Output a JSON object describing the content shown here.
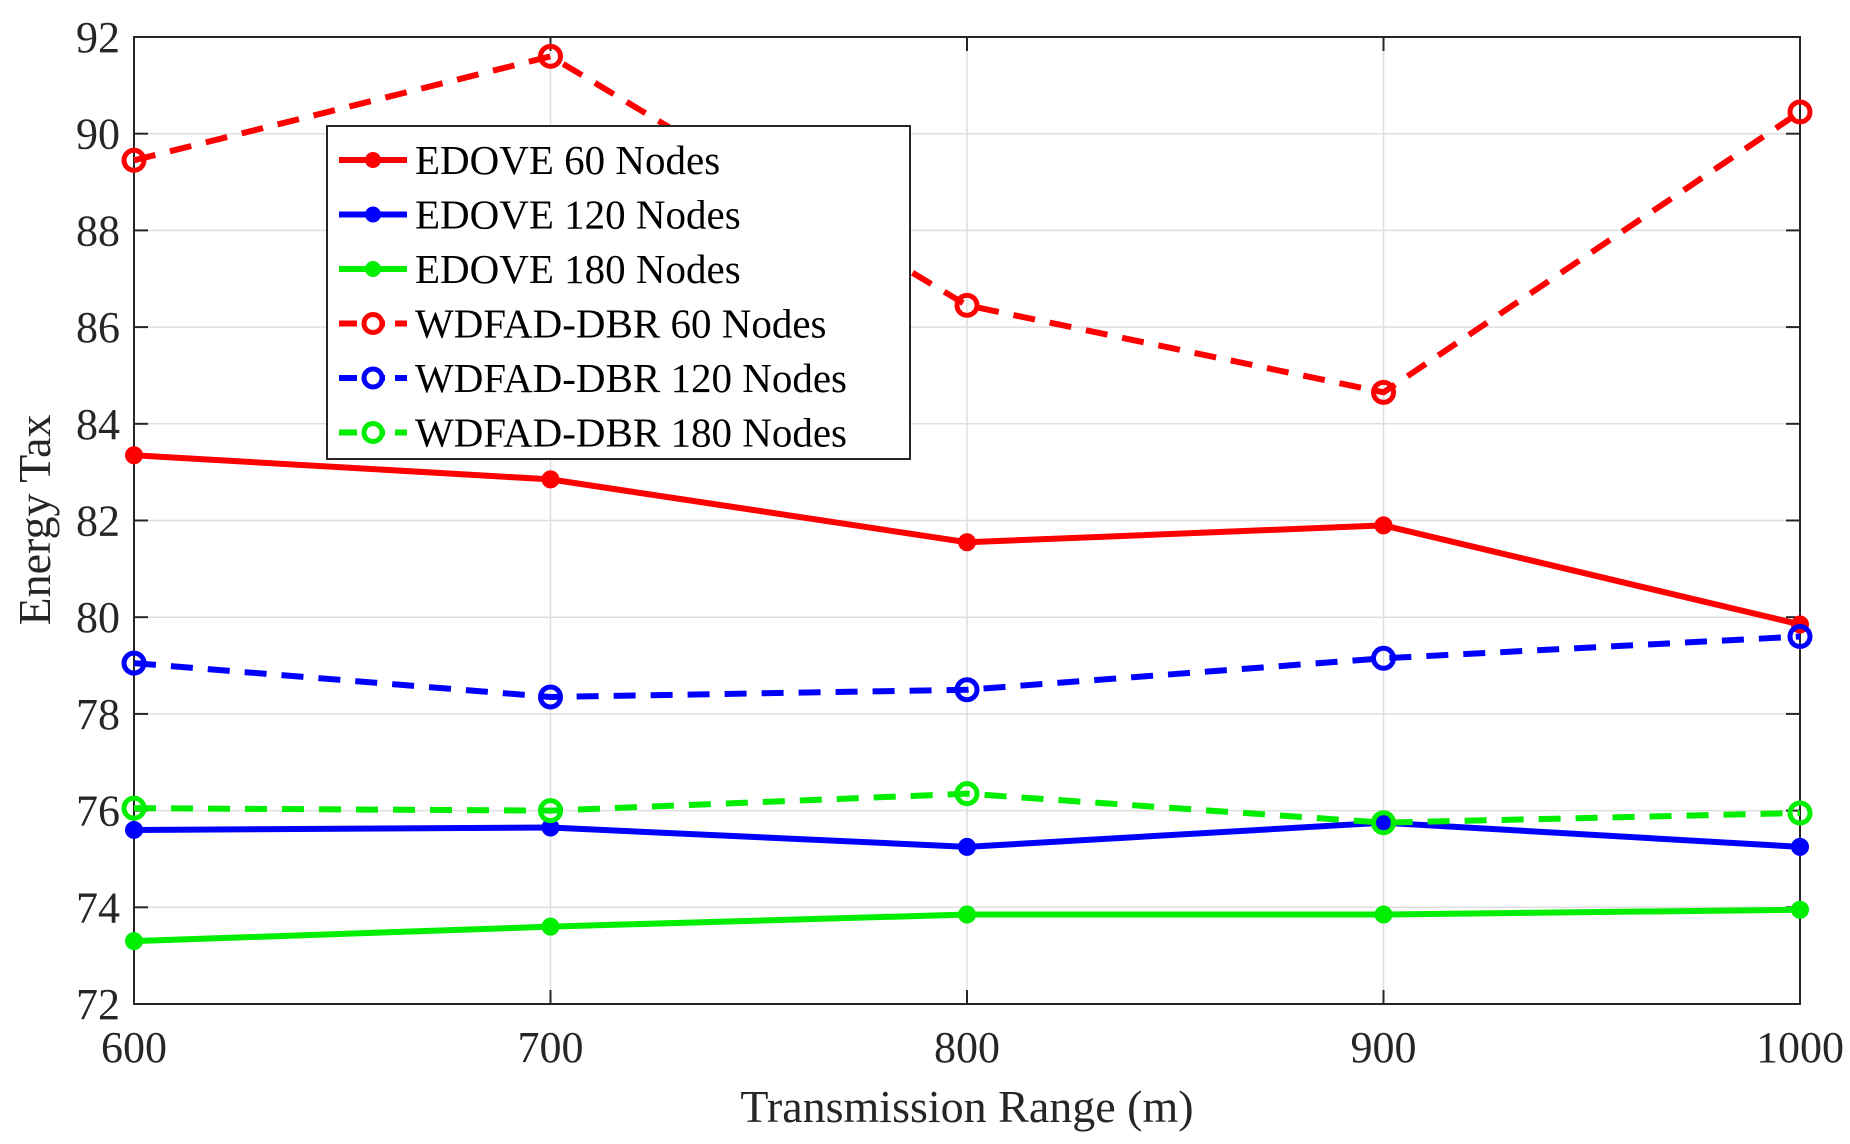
{
  "chart_data": {
    "type": "line",
    "title": "",
    "xlabel": "Transmission Range (m)",
    "ylabel": "Energy Tax",
    "x": [
      600,
      700,
      800,
      900,
      1000
    ],
    "x_tick_labels": [
      "600",
      "700",
      "800",
      "900",
      "1000"
    ],
    "y_tick_labels": [
      "72",
      "74",
      "76",
      "78",
      "80",
      "82",
      "84",
      "86",
      "88",
      "90",
      "92"
    ],
    "xlim": [
      600,
      1000
    ],
    "ylim": [
      72,
      92
    ],
    "grid": true,
    "legend_position": "top-left",
    "series": [
      {
        "name": "EDOVE 60 Nodes",
        "color": "#ff0000",
        "style": "solid",
        "marker": "filled-circle",
        "values": [
          83.35,
          82.85,
          81.55,
          81.9,
          79.85
        ]
      },
      {
        "name": "EDOVE 120 Nodes",
        "color": "#0000ff",
        "style": "solid",
        "marker": "filled-circle",
        "values": [
          75.6,
          75.65,
          75.25,
          75.75,
          75.25
        ]
      },
      {
        "name": "EDOVE 180 Nodes",
        "color": "#00ee00",
        "style": "solid",
        "marker": "filled-circle",
        "values": [
          73.3,
          73.6,
          73.85,
          73.85,
          73.95
        ]
      },
      {
        "name": "WDFAD-DBR 60 Nodes",
        "color": "#ff0000",
        "style": "dashed",
        "marker": "open-circle",
        "values": [
          89.45,
          91.6,
          86.45,
          84.65,
          90.45
        ]
      },
      {
        "name": "WDFAD-DBR 120 Nodes",
        "color": "#0000ff",
        "style": "dashed",
        "marker": "open-circle",
        "values": [
          79.05,
          78.35,
          78.5,
          79.15,
          79.6
        ]
      },
      {
        "name": "WDFAD-DBR 180 Nodes",
        "color": "#00ee00",
        "style": "dashed",
        "marker": "open-circle",
        "values": [
          76.05,
          76.0,
          76.35,
          75.75,
          75.95
        ]
      }
    ]
  }
}
